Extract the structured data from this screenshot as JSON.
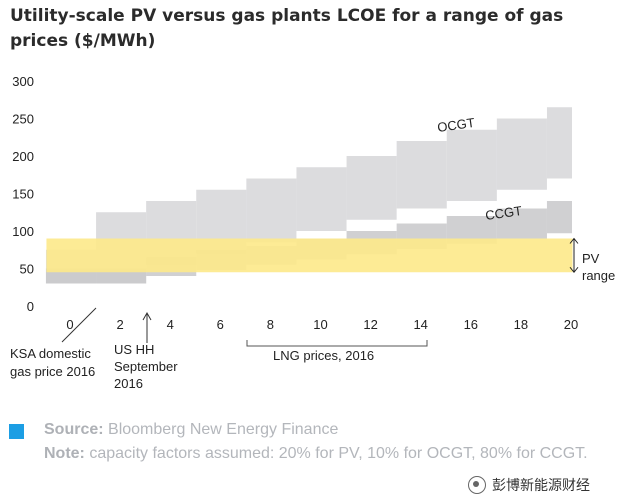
{
  "title": "Utility-scale PV versus gas plants LCOE for a range of gas prices ($/MWh)",
  "source_label": "Source:",
  "source_text": "Bloomberg New Energy Finance",
  "note_label": "Note:",
  "note_text": "capacity factors assumed: 20% for PV, 10% for OCGT, 80% for CCGT.",
  "watermark": "彭博新能源财经",
  "colors": {
    "ocgt": "#d6d6d8",
    "ccgt": "#c8c8ca",
    "pv": "#fde98a",
    "marker": "#1c9ee4"
  },
  "chart_data": {
    "type": "area",
    "title": "Utility-scale PV versus gas plants LCOE for a range of gas prices ($/MWh)",
    "ylim": [
      0,
      300
    ],
    "yticks": [
      "0",
      "50",
      "100",
      "150",
      "200",
      "250",
      "300"
    ],
    "xlim": [
      -1,
      20
    ],
    "xticks": [
      "0",
      "2",
      "4",
      "6",
      "8",
      "10",
      "12",
      "14",
      "16",
      "18",
      "20"
    ],
    "grid": false,
    "series": [
      {
        "name": "OCGT",
        "x_breaks": [
          -1,
          1,
          3,
          5,
          7,
          9,
          11,
          13,
          15,
          17,
          19,
          20
        ],
        "low": [
          30,
          30,
          55,
          70,
          85,
          100,
          115,
          130,
          140,
          155,
          170
        ],
        "high": [
          75,
          125,
          140,
          155,
          170,
          185,
          200,
          220,
          235,
          250,
          265
        ]
      },
      {
        "name": "CCGT",
        "x_breaks": [
          -1,
          1,
          3,
          5,
          7,
          9,
          11,
          13,
          15,
          17,
          19,
          20
        ],
        "low": [
          30,
          30,
          40,
          48,
          55,
          62,
          69,
          76,
          83,
          90,
          97
        ],
        "high": [
          50,
          50,
          65,
          75,
          80,
          90,
          100,
          110,
          120,
          130,
          140
        ]
      },
      {
        "name": "PV",
        "x_range": [
          -1,
          20
        ],
        "low": 45,
        "high": 90
      }
    ],
    "annotations": [
      {
        "text": "OCGT",
        "x": 15.5,
        "y": 245
      },
      {
        "text": "CCGT",
        "x": 16.8,
        "y": 122
      },
      {
        "text": "PV",
        "label_line1": "PV",
        "label_line2": "range"
      },
      {
        "text": "KSA domestic gas price 2016"
      },
      {
        "text": "US HH September 2016"
      },
      {
        "text": "LNG prices, 2016"
      }
    ],
    "callouts": {
      "ksa_line1": "KSA domestic",
      "ksa_line2": "gas price 2016",
      "us_line1": "US HH",
      "us_line2": "September",
      "us_line3": "2016",
      "lng": "LNG prices, 2016",
      "pv_line1": "PV",
      "pv_line2": "range",
      "ocgt": "OCGT",
      "ccgt": "CCGT"
    }
  }
}
